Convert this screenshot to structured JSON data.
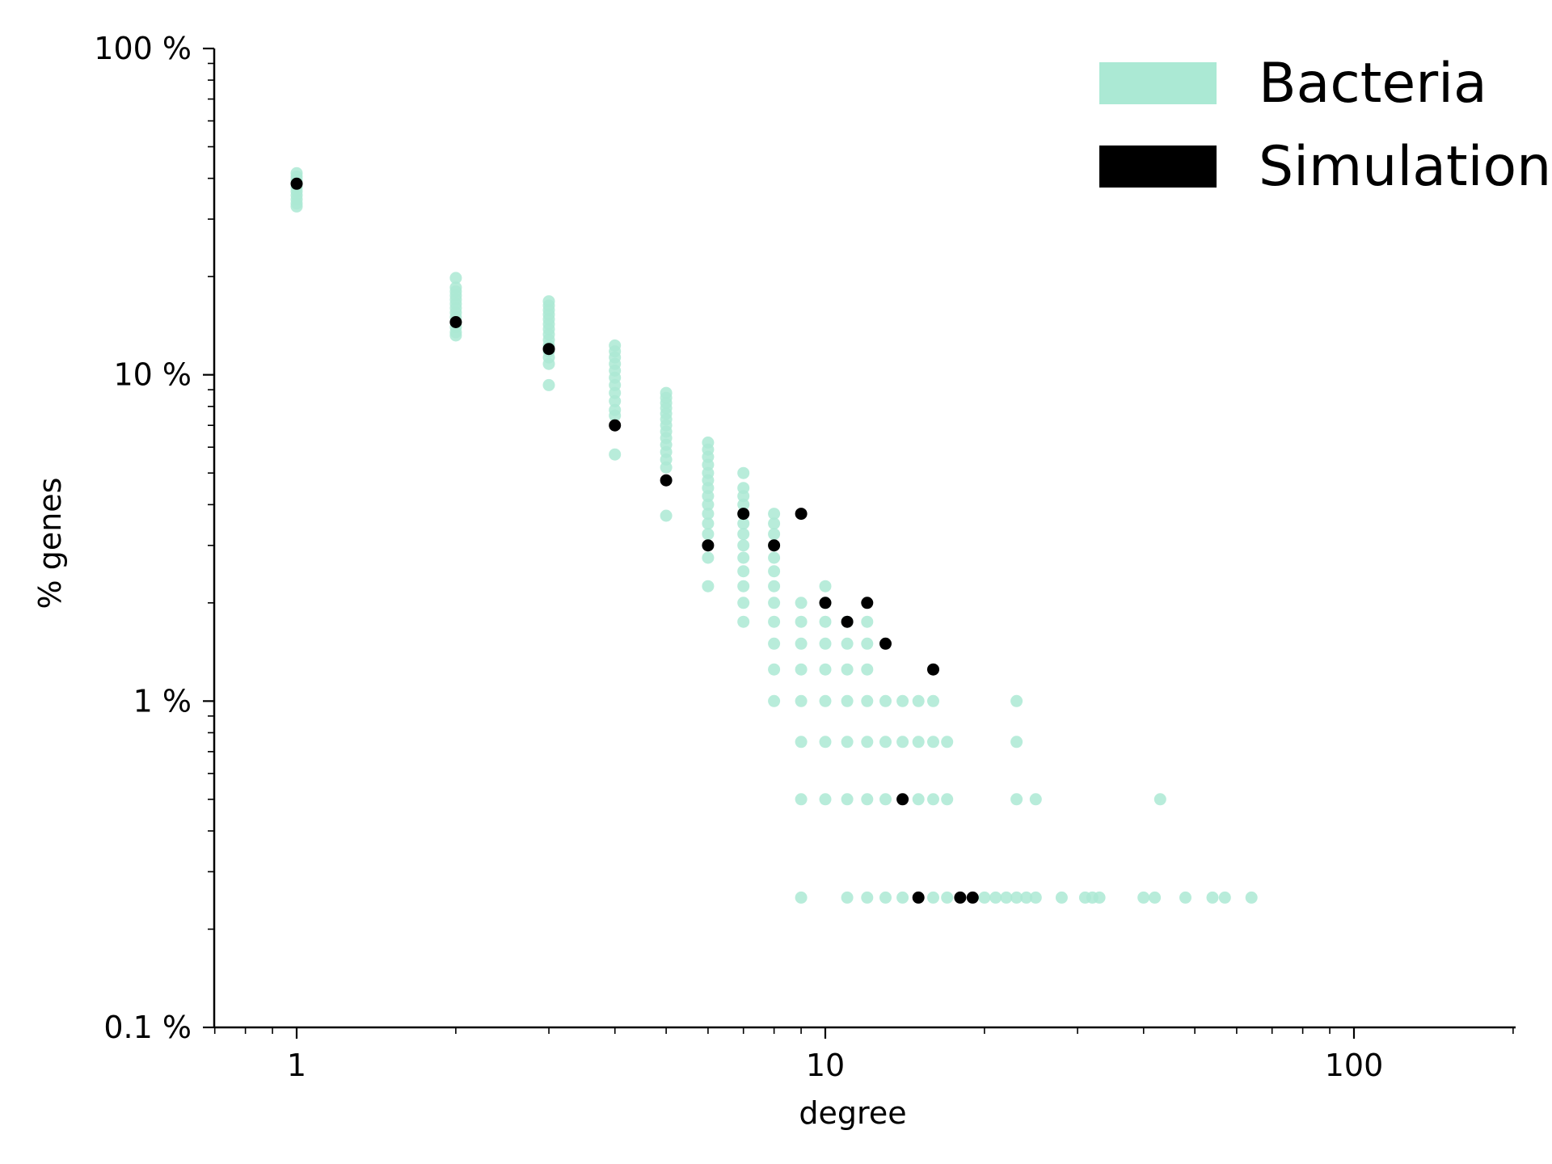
{
  "chart_data": {
    "type": "scatter",
    "xscale": "log",
    "yscale": "log",
    "xlim": [
      0.7,
      200
    ],
    "ylim": [
      0.1,
      100
    ],
    "xlabel": "degree",
    "ylabel": "% genes",
    "grid": false,
    "legend_position": "top-right",
    "x_ticks": [
      {
        "value": 1,
        "label": "1"
      },
      {
        "value": 10,
        "label": "10"
      },
      {
        "value": 100,
        "label": "100"
      }
    ],
    "y_ticks": [
      {
        "value": 0.1,
        "label": "0.1 %"
      },
      {
        "value": 1,
        "label": "1 %"
      },
      {
        "value": 10,
        "label": "10 %"
      },
      {
        "value": 100,
        "label": "100 %"
      }
    ],
    "series": [
      {
        "name": "Bacteria",
        "color": "#abe9d4",
        "points": [
          [
            1,
            41.5
          ],
          [
            1,
            40.5
          ],
          [
            1,
            39.5
          ],
          [
            1,
            38.5
          ],
          [
            1,
            37.5
          ],
          [
            1,
            36.5
          ],
          [
            1,
            35.5
          ],
          [
            1,
            34.5
          ],
          [
            1,
            33.5
          ],
          [
            1,
            32.8
          ],
          [
            2,
            19.8
          ],
          [
            2,
            18.5
          ],
          [
            2,
            18
          ],
          [
            2,
            17.5
          ],
          [
            2,
            17
          ],
          [
            2,
            16.5
          ],
          [
            2,
            16
          ],
          [
            2,
            15.5
          ],
          [
            2,
            15
          ],
          [
            2,
            14.5
          ],
          [
            2,
            14
          ],
          [
            2,
            13.5
          ],
          [
            2,
            13.2
          ],
          [
            3,
            16.8
          ],
          [
            3,
            16.3
          ],
          [
            3,
            15.8
          ],
          [
            3,
            15.3
          ],
          [
            3,
            14.8
          ],
          [
            3,
            14.3
          ],
          [
            3,
            13.8
          ],
          [
            3,
            13.3
          ],
          [
            3,
            12.8
          ],
          [
            3,
            12.3
          ],
          [
            3,
            11.8
          ],
          [
            3,
            11.3
          ],
          [
            3,
            10.8
          ],
          [
            3,
            9.3
          ],
          [
            4,
            12.3
          ],
          [
            4,
            11.8
          ],
          [
            4,
            11.3
          ],
          [
            4,
            10.8
          ],
          [
            4,
            10.3
          ],
          [
            4,
            9.8
          ],
          [
            4,
            9.3
          ],
          [
            4,
            8.8
          ],
          [
            4,
            8.3
          ],
          [
            4,
            7.8
          ],
          [
            4,
            7.5
          ],
          [
            4,
            5.7
          ],
          [
            5,
            8.8
          ],
          [
            5,
            8.5
          ],
          [
            5,
            8.2
          ],
          [
            5,
            7.9
          ],
          [
            5,
            7.6
          ],
          [
            5,
            7.3
          ],
          [
            5,
            7
          ],
          [
            5,
            6.7
          ],
          [
            5,
            6.4
          ],
          [
            5,
            6.1
          ],
          [
            5,
            5.8
          ],
          [
            5,
            5.5
          ],
          [
            5,
            5.2
          ],
          [
            5,
            3.7
          ],
          [
            6,
            6.2
          ],
          [
            6,
            5.9
          ],
          [
            6,
            5.6
          ],
          [
            6,
            5.3
          ],
          [
            6,
            5
          ],
          [
            6,
            4.75
          ],
          [
            6,
            4.5
          ],
          [
            6,
            4.25
          ],
          [
            6,
            4
          ],
          [
            6,
            3.75
          ],
          [
            6,
            3.5
          ],
          [
            6,
            3.25
          ],
          [
            6,
            2.75
          ],
          [
            6,
            2.25
          ],
          [
            7,
            5
          ],
          [
            7,
            4.5
          ],
          [
            7,
            4.25
          ],
          [
            7,
            4
          ],
          [
            7,
            3.75
          ],
          [
            7,
            3.5
          ],
          [
            7,
            3.25
          ],
          [
            7,
            3
          ],
          [
            7,
            2.75
          ],
          [
            7,
            2.5
          ],
          [
            7,
            2.25
          ],
          [
            7,
            2
          ],
          [
            7,
            1.75
          ],
          [
            8,
            3.75
          ],
          [
            8,
            3.5
          ],
          [
            8,
            3.25
          ],
          [
            8,
            3
          ],
          [
            8,
            2.75
          ],
          [
            8,
            2.5
          ],
          [
            8,
            2.25
          ],
          [
            8,
            2
          ],
          [
            8,
            1.75
          ],
          [
            8,
            1.5
          ],
          [
            8,
            1.25
          ],
          [
            8,
            1
          ],
          [
            9,
            2
          ],
          [
            9,
            1.75
          ],
          [
            9,
            1.5
          ],
          [
            9,
            1.25
          ],
          [
            9,
            1
          ],
          [
            9,
            0.75
          ],
          [
            9,
            0.5
          ],
          [
            9,
            0.25
          ],
          [
            10,
            2.25
          ],
          [
            10,
            2
          ],
          [
            10,
            1.75
          ],
          [
            10,
            1.5
          ],
          [
            10,
            1.25
          ],
          [
            10,
            1
          ],
          [
            10,
            0.75
          ],
          [
            10,
            0.5
          ],
          [
            11,
            1.75
          ],
          [
            11,
            1.5
          ],
          [
            11,
            1.25
          ],
          [
            11,
            1
          ],
          [
            11,
            0.75
          ],
          [
            11,
            0.5
          ],
          [
            11,
            0.25
          ],
          [
            12,
            1.75
          ],
          [
            12,
            1.5
          ],
          [
            12,
            1.25
          ],
          [
            12,
            1
          ],
          [
            12,
            0.75
          ],
          [
            12,
            0.5
          ],
          [
            12,
            0.25
          ],
          [
            13,
            1
          ],
          [
            13,
            0.75
          ],
          [
            13,
            0.5
          ],
          [
            13,
            0.25
          ],
          [
            14,
            1
          ],
          [
            14,
            0.75
          ],
          [
            14,
            0.25
          ],
          [
            15,
            1
          ],
          [
            15,
            0.75
          ],
          [
            15,
            0.5
          ],
          [
            16,
            1
          ],
          [
            16,
            0.75
          ],
          [
            16,
            0.5
          ],
          [
            16,
            0.25
          ],
          [
            17,
            0.75
          ],
          [
            17,
            0.5
          ],
          [
            17,
            0.25
          ],
          [
            20,
            0.25
          ],
          [
            21,
            0.25
          ],
          [
            22,
            0.25
          ],
          [
            23,
            1
          ],
          [
            23,
            0.75
          ],
          [
            23,
            0.5
          ],
          [
            23,
            0.25
          ],
          [
            24,
            0.25
          ],
          [
            25,
            0.5
          ],
          [
            25,
            0.25
          ],
          [
            28,
            0.25
          ],
          [
            31,
            0.25
          ],
          [
            32,
            0.25
          ],
          [
            33,
            0.25
          ],
          [
            40,
            0.25
          ],
          [
            42,
            0.25
          ],
          [
            43,
            0.5
          ],
          [
            48,
            0.25
          ],
          [
            54,
            0.25
          ],
          [
            57,
            0.25
          ],
          [
            64,
            0.25
          ]
        ]
      },
      {
        "name": "Simulation",
        "color": "#000000",
        "points": [
          [
            1,
            38.5
          ],
          [
            2,
            14.5
          ],
          [
            3,
            12
          ],
          [
            4,
            7
          ],
          [
            5,
            4.75
          ],
          [
            6,
            3
          ],
          [
            7,
            3.75
          ],
          [
            8,
            3
          ],
          [
            9,
            3.75
          ],
          [
            10,
            2
          ],
          [
            11,
            1.75
          ],
          [
            12,
            2
          ],
          [
            13,
            1.5
          ],
          [
            14,
            0.5
          ],
          [
            15,
            0.25
          ],
          [
            16,
            1.25
          ],
          [
            18,
            0.25
          ],
          [
            19,
            0.25
          ]
        ]
      }
    ]
  }
}
